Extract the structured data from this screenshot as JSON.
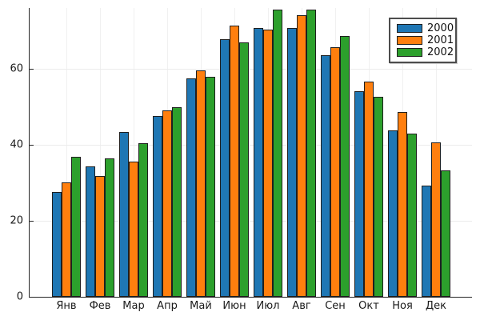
{
  "chart_data": {
    "type": "bar",
    "title": "",
    "xlabel": "",
    "ylabel": "",
    "categories": [
      "Янв",
      "Фев",
      "Мар",
      "Апр",
      "Май",
      "Июн",
      "Июл",
      "Авг",
      "Сен",
      "Окт",
      "Ноя",
      "Дек"
    ],
    "series": [
      {
        "name": "2000",
        "color": "#1f77b4",
        "values": [
          27.6,
          34.2,
          43.4,
          47.5,
          57.4,
          67.6,
          70.6,
          70.7,
          63.5,
          54.1,
          43.8,
          29.3
        ]
      },
      {
        "name": "2001",
        "color": "#ff7f0e",
        "values": [
          30.0,
          31.8,
          35.5,
          48.9,
          59.6,
          71.3,
          70.2,
          74.0,
          65.6,
          56.5,
          48.5,
          40.6
        ]
      },
      {
        "name": "2002",
        "color": "#2ca02c",
        "values": [
          36.7,
          36.3,
          40.3,
          49.9,
          57.8,
          66.8,
          75.5,
          75.4,
          68.5,
          52.6,
          42.9,
          33.2
        ]
      }
    ],
    "yticks": [
      0,
      20,
      40,
      60
    ],
    "ylim": [
      0,
      75.9
    ],
    "grid": true,
    "legend_position": "top-right",
    "background": "#ffffff"
  }
}
